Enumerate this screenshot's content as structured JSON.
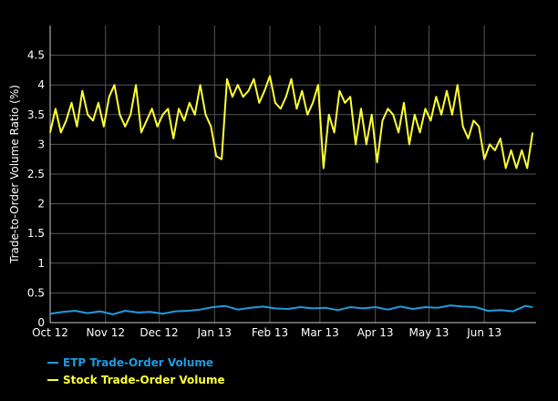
{
  "chart_data": {
    "type": "line",
    "title": "",
    "xlabel": "",
    "ylabel": "Trade-to-Order Volume Ratio (%)",
    "ylim": [
      0,
      5
    ],
    "yticks": [
      0,
      0.5,
      1,
      1.5,
      2,
      2.5,
      3,
      3.5,
      4,
      4.5
    ],
    "ytick_labels": [
      "0",
      "0.5",
      "1",
      "1.5",
      "2",
      "2.5",
      "3",
      "3.5",
      "4",
      "4.5"
    ],
    "x_start": "2012-10-01",
    "x_end": "2013-06-30",
    "x_tick_dates": [
      "2012-10-01",
      "2012-11-01",
      "2012-12-01",
      "2013-01-01",
      "2013-02-01",
      "2013-03-01",
      "2013-04-01",
      "2013-05-01",
      "2013-06-01"
    ],
    "x_tick_labels": [
      "Oct 12",
      "Nov 12",
      "Dec 12",
      "Jan 13",
      "Feb 13",
      "Mar 13",
      "Apr 13",
      "May 13",
      "Jun 13"
    ],
    "grid": true,
    "legend_position": "bottom-left",
    "series": [
      {
        "name": "ETP Trade-Order Volume",
        "color": "#1f9be0",
        "x": [
          "2012-10-01",
          "2012-10-08",
          "2012-10-15",
          "2012-10-22",
          "2012-10-29",
          "2012-11-05",
          "2012-11-12",
          "2012-11-19",
          "2012-11-26",
          "2012-12-03",
          "2012-12-10",
          "2012-12-17",
          "2012-12-24",
          "2012-12-31",
          "2013-01-07",
          "2013-01-14",
          "2013-01-21",
          "2013-01-28",
          "2013-02-04",
          "2013-02-11",
          "2013-02-18",
          "2013-02-25",
          "2013-03-04",
          "2013-03-11",
          "2013-03-18",
          "2013-03-25",
          "2013-04-01",
          "2013-04-08",
          "2013-04-15",
          "2013-04-22",
          "2013-04-29",
          "2013-05-06",
          "2013-05-13",
          "2013-05-20",
          "2013-05-27",
          "2013-06-03",
          "2013-06-10",
          "2013-06-17",
          "2013-06-24",
          "2013-06-28"
        ],
        "values": [
          0.15,
          0.18,
          0.2,
          0.16,
          0.19,
          0.14,
          0.2,
          0.17,
          0.18,
          0.15,
          0.19,
          0.2,
          0.22,
          0.26,
          0.28,
          0.22,
          0.25,
          0.27,
          0.24,
          0.23,
          0.26,
          0.24,
          0.25,
          0.21,
          0.26,
          0.24,
          0.26,
          0.22,
          0.27,
          0.23,
          0.26,
          0.25,
          0.29,
          0.27,
          0.26,
          0.2,
          0.21,
          0.19,
          0.28,
          0.26
        ]
      },
      {
        "name": "Stock Trade-Order Volume",
        "color": "#ffff33",
        "x": [
          "2012-10-01",
          "2012-10-04",
          "2012-10-07",
          "2012-10-10",
          "2012-10-13",
          "2012-10-16",
          "2012-10-19",
          "2012-10-22",
          "2012-10-25",
          "2012-10-28",
          "2012-10-31",
          "2012-11-03",
          "2012-11-06",
          "2012-11-09",
          "2012-11-12",
          "2012-11-15",
          "2012-11-18",
          "2012-11-21",
          "2012-11-24",
          "2012-11-27",
          "2012-11-30",
          "2012-12-03",
          "2012-12-06",
          "2012-12-09",
          "2012-12-12",
          "2012-12-15",
          "2012-12-18",
          "2012-12-21",
          "2012-12-24",
          "2012-12-27",
          "2012-12-30",
          "2013-01-02",
          "2013-01-05",
          "2013-01-08",
          "2013-01-11",
          "2013-01-14",
          "2013-01-17",
          "2013-01-20",
          "2013-01-23",
          "2013-01-26",
          "2013-01-29",
          "2013-02-01",
          "2013-02-04",
          "2013-02-07",
          "2013-02-10",
          "2013-02-13",
          "2013-02-16",
          "2013-02-19",
          "2013-02-22",
          "2013-02-25",
          "2013-02-28",
          "2013-03-03",
          "2013-03-06",
          "2013-03-09",
          "2013-03-12",
          "2013-03-15",
          "2013-03-18",
          "2013-03-21",
          "2013-03-24",
          "2013-03-27",
          "2013-03-30",
          "2013-04-02",
          "2013-04-05",
          "2013-04-08",
          "2013-04-11",
          "2013-04-14",
          "2013-04-17",
          "2013-04-20",
          "2013-04-23",
          "2013-04-26",
          "2013-04-29",
          "2013-05-02",
          "2013-05-05",
          "2013-05-08",
          "2013-05-11",
          "2013-05-14",
          "2013-05-17",
          "2013-05-20",
          "2013-05-23",
          "2013-05-26",
          "2013-05-29",
          "2013-06-01",
          "2013-06-04",
          "2013-06-07",
          "2013-06-10",
          "2013-06-13",
          "2013-06-16",
          "2013-06-19",
          "2013-06-22",
          "2013-06-25",
          "2013-06-28"
        ],
        "values": [
          3.2,
          3.6,
          3.2,
          3.4,
          3.7,
          3.3,
          3.9,
          3.5,
          3.4,
          3.7,
          3.3,
          3.8,
          4.0,
          3.5,
          3.3,
          3.5,
          4.0,
          3.2,
          3.4,
          3.6,
          3.3,
          3.5,
          3.6,
          3.1,
          3.6,
          3.4,
          3.7,
          3.5,
          4.0,
          3.5,
          3.3,
          2.8,
          2.75,
          4.1,
          3.8,
          4.0,
          3.8,
          3.9,
          4.1,
          3.7,
          3.9,
          4.15,
          3.7,
          3.6,
          3.8,
          4.1,
          3.6,
          3.9,
          3.5,
          3.7,
          4.0,
          2.6,
          3.5,
          3.2,
          3.9,
          3.7,
          3.8,
          3.0,
          3.6,
          3.0,
          3.5,
          2.7,
          3.4,
          3.6,
          3.5,
          3.2,
          3.7,
          3.0,
          3.5,
          3.2,
          3.6,
          3.4,
          3.8,
          3.5,
          3.9,
          3.5,
          4.0,
          3.3,
          3.1,
          3.4,
          3.3,
          2.75,
          3.0,
          2.9,
          3.1,
          2.6,
          2.9,
          2.6,
          2.9,
          2.6,
          3.2
        ]
      }
    ]
  }
}
